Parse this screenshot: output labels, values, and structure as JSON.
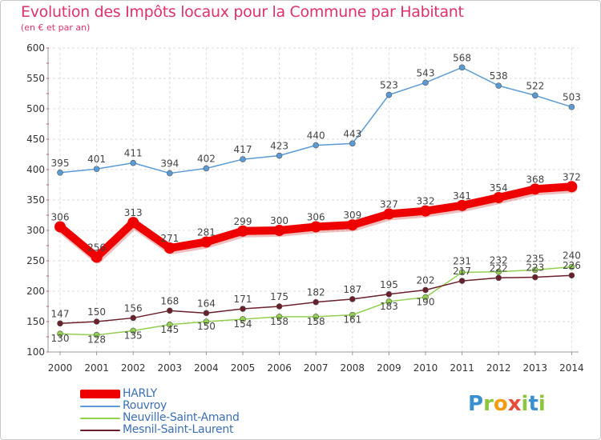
{
  "title": "Evolution des Impôts locaux pour la Commune par Habitant",
  "subtitle": "(en € et par an)",
  "brand": {
    "chars": [
      "P",
      "r",
      "o",
      "x",
      "i",
      "t",
      "i"
    ],
    "colors": [
      "#3a8fd1",
      "#8cc63f",
      "#f39c12",
      "#e74c3c",
      "#8cc63f",
      "#3a8fd1",
      "#8cc63f"
    ]
  },
  "chart_data": {
    "type": "line",
    "title": "Evolution des Impôts locaux pour la Commune par Habitant",
    "ylabel": "(en € et par an)",
    "x": [
      "2000",
      "2001",
      "2002",
      "2003",
      "2004",
      "2005",
      "2006",
      "2007",
      "2008",
      "2009",
      "2010",
      "2011",
      "2012",
      "2013",
      "2014"
    ],
    "ylim": [
      100,
      600
    ],
    "yticks": [
      "100",
      "150",
      "200",
      "250",
      "300",
      "350",
      "400",
      "450",
      "500",
      "550",
      "600"
    ],
    "series": [
      {
        "name": "Rouvroy",
        "color": "#5b9bd5",
        "values": [
          395,
          401,
          411,
          394,
          402,
          417,
          423,
          440,
          443,
          523,
          543,
          568,
          538,
          522,
          503
        ],
        "labels": [
          "395",
          "401",
          "411",
          "394",
          "402",
          "417",
          "423",
          "440",
          "443",
          "523",
          "543",
          "568",
          "538",
          "522",
          "503"
        ]
      },
      {
        "name": "Neuville-Saint-Amand",
        "color": "#92d050",
        "values": [
          130,
          128,
          135,
          145,
          150,
          154,
          158,
          158,
          161,
          183,
          190,
          231,
          232,
          235,
          240
        ],
        "labels": [
          "130",
          "128",
          "135",
          "145",
          "150",
          "154",
          "158",
          "158",
          "161",
          "183",
          "190",
          "231",
          "232",
          "235",
          "240"
        ]
      },
      {
        "name": "Mesnil-Saint-Laurent",
        "color": "#6b1f2a",
        "values": [
          147,
          150,
          156,
          168,
          164,
          171,
          175,
          182,
          187,
          195,
          202,
          217,
          222,
          223,
          226
        ],
        "labels": [
          "147",
          "150",
          "156",
          "168",
          "164",
          "171",
          "175",
          "182",
          "187",
          "195",
          "202",
          "217",
          "222",
          "223",
          "226"
        ]
      },
      {
        "name": "HARLY",
        "color": "#ee0000",
        "values": [
          306,
          256,
          313,
          271,
          281,
          299,
          300,
          306,
          309,
          327,
          332,
          341,
          354,
          368,
          372
        ],
        "labels": [
          "306",
          "256",
          "313",
          "271",
          "281",
          "299",
          "300",
          "306",
          "309",
          "327",
          "332",
          "341",
          "354",
          "368",
          "372"
        ]
      }
    ],
    "legend": [
      "HARLY",
      "Rouvroy",
      "Neuville-Saint-Amand",
      "Mesnil-Saint-Laurent"
    ]
  }
}
